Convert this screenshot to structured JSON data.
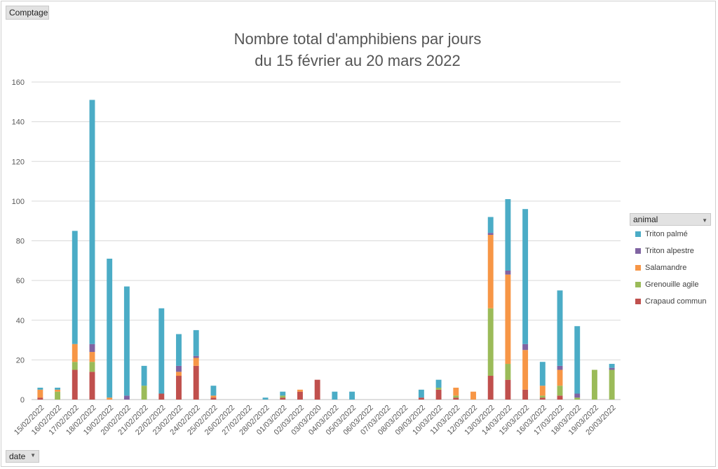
{
  "field_buttons": {
    "value": "Comptage",
    "axis": "date",
    "legend": "animal"
  },
  "chart_data": {
    "type": "bar",
    "stacked": true,
    "title": "Nombre total d'amphibiens par jours",
    "subtitle": "du 15 février au 20 mars 2022",
    "ylim": [
      0,
      160
    ],
    "yticks": [
      0,
      20,
      40,
      60,
      80,
      100,
      120,
      140,
      160
    ],
    "grid": true,
    "legend_position": "right",
    "categories": [
      "15/02/2022",
      "16/02/2022",
      "17/02/2022",
      "18/02/2022",
      "19/02/2022",
      "20/02/2022",
      "21/02/2022",
      "22/02/2022",
      "23/02/2022",
      "24/02/2022",
      "25/02/2022",
      "26/02/2022",
      "27/02/2022",
      "28/02/2022",
      "01/03/2022",
      "02/03/2022",
      "03/03/2020",
      "04/03/2022",
      "05/03/2022",
      "06/03/2022",
      "07/03/2022",
      "08/03/2022",
      "09/03/2022",
      "10/03/2022",
      "11/03/2022",
      "12/03/2022",
      "13/03/2022",
      "14/03/2022",
      "15/03/2022",
      "16/03/2022",
      "17/03/2022",
      "18/03/2022",
      "19/03/2022",
      "20/03/2022"
    ],
    "series": [
      {
        "name": "Crapaud commun",
        "color": "#c0504d",
        "values": [
          1,
          0,
          15,
          14,
          0,
          0,
          0,
          3,
          12,
          17,
          1,
          0,
          0,
          0,
          1,
          4,
          10,
          0,
          0,
          0,
          0,
          0,
          1,
          5,
          1,
          0,
          12,
          10,
          5,
          1,
          2,
          0,
          0,
          0
        ]
      },
      {
        "name": "Grenouille agile",
        "color": "#9bbb59",
        "values": [
          0,
          4,
          4,
          5,
          0,
          0,
          7,
          0,
          0,
          0,
          0,
          0,
          0,
          0,
          1,
          0,
          0,
          0,
          0,
          0,
          0,
          0,
          0,
          1,
          1,
          0,
          34,
          8,
          0,
          1,
          5,
          1,
          15,
          15
        ]
      },
      {
        "name": "Salamandre",
        "color": "#f79646",
        "values": [
          4,
          1,
          9,
          5,
          1,
          0,
          0,
          0,
          2,
          4,
          1,
          0,
          0,
          0,
          0,
          1,
          0,
          0,
          0,
          0,
          0,
          0,
          0,
          0,
          4,
          4,
          37,
          45,
          20,
          5,
          8,
          0,
          0,
          0
        ]
      },
      {
        "name": "Triton alpestre",
        "color": "#8064a2",
        "values": [
          0,
          0,
          0,
          4,
          0,
          2,
          0,
          0,
          3,
          1,
          0,
          0,
          0,
          0,
          0,
          0,
          0,
          0,
          0,
          0,
          0,
          0,
          0,
          0,
          0,
          0,
          1,
          2,
          3,
          0,
          2,
          2,
          0,
          1
        ]
      },
      {
        "name": "Triton palmé",
        "color": "#4bacc6",
        "values": [
          1,
          1,
          57,
          123,
          70,
          55,
          10,
          43,
          16,
          13,
          5,
          0,
          0,
          1,
          2,
          0,
          0,
          4,
          4,
          0,
          0,
          0,
          4,
          4,
          0,
          0,
          8,
          36,
          68,
          12,
          38,
          34,
          0,
          2
        ]
      }
    ]
  }
}
